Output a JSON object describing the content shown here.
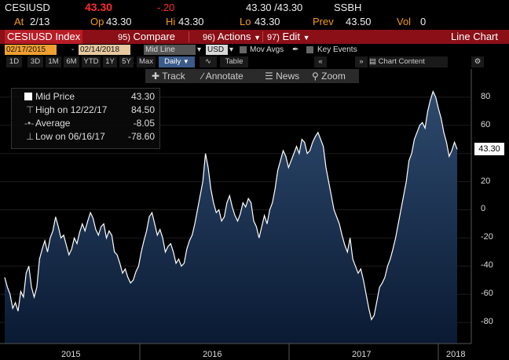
{
  "quote": {
    "ticker": "CESIUSD",
    "price": "43.30",
    "change": "-.20",
    "bid_ask": "43.30 /43.30",
    "source": "SSBH",
    "at_label": "At",
    "at_value": "2/13",
    "op_label": "Op",
    "op_value": "43.30",
    "hi_label": "Hi",
    "hi_value": "43.30",
    "lo_label": "Lo",
    "lo_value": "43.30",
    "prev_label": "Prev",
    "prev_value": "43.50",
    "vol_label": "Vol",
    "vol_value": "0"
  },
  "commandbar": {
    "security": "CESIUSD Index",
    "compare_num": "95)",
    "compare": "Compare",
    "actions_num": "96)",
    "actions": "Actions",
    "edit_num": "97)",
    "edit": "Edit",
    "chart_type": "Line Chart"
  },
  "toolbar": {
    "start_date": "02/17/2015",
    "dash": "-",
    "end_date": "02/14/2018",
    "line_mode": "Mid Line",
    "currency": "USD",
    "mov_avgs": "Mov Avgs",
    "key_events": "Key Events",
    "chart_content": "Chart Content",
    "table": "Table",
    "periods": [
      "1D",
      "3D",
      "1M",
      "6M",
      "YTD",
      "1Y",
      "5Y",
      "Max"
    ],
    "frequency": "Daily"
  },
  "tools": {
    "track": "Track",
    "annotate": "Annotate",
    "news": "News",
    "zoom": "Zoom"
  },
  "legend": {
    "mid_label": "Mid Price",
    "mid_value": "43.30",
    "high_label": "High on 12/22/17",
    "high_value": "84.50",
    "avg_label": "Average",
    "avg_value": "-8.05",
    "low_label": "Low on 06/16/17",
    "low_value": "-78.60"
  },
  "colors": {
    "accent_amber": "#f39c12",
    "negative_red": "#ff2a2a",
    "command_bar": "#8a0f17",
    "line": "#ffffff",
    "area_top": "#2e4a6e",
    "area_bottom": "#0a1a33"
  },
  "chart_data": {
    "type": "area",
    "ylim": [
      -95,
      100
    ],
    "yticks": [
      80,
      60,
      40,
      20,
      0,
      -20,
      -40,
      -60,
      -80
    ],
    "ytick_labels": [
      "80",
      "60",
      "40",
      "20",
      "0",
      "-20",
      "-40",
      "-60",
      "-80"
    ],
    "xticks": [
      "2015",
      "2016",
      "2017",
      "2018"
    ],
    "last_value": "43.30",
    "series": [
      {
        "values": [
          -48,
          -55,
          -60,
          -70,
          -66,
          -72,
          -58,
          -62,
          -45,
          -40,
          -55,
          -62,
          -55,
          -35,
          -28,
          -22,
          -30,
          -20,
          -15,
          -5,
          -12,
          -20,
          -18,
          -25,
          -32,
          -28,
          -20,
          -24,
          -16,
          -10,
          -15,
          -8,
          -2,
          -6,
          -14,
          -18,
          -12,
          -10,
          -20,
          -15,
          -18,
          -30,
          -32,
          -38,
          -45,
          -42,
          -48,
          -52,
          -50,
          -44,
          -40,
          -30,
          -22,
          -15,
          -5,
          -2,
          -10,
          -18,
          -14,
          -20,
          -30,
          -26,
          -24,
          -30,
          -38,
          -35,
          -40,
          -38,
          -28,
          -22,
          -18,
          -10,
          0,
          10,
          20,
          40,
          30,
          15,
          5,
          -2,
          0,
          -8,
          -5,
          5,
          10,
          2,
          -4,
          -8,
          -3,
          5,
          2,
          8,
          5,
          -8,
          -12,
          -20,
          -12,
          -4,
          -10,
          0,
          5,
          15,
          28,
          35,
          42,
          38,
          30,
          35,
          40,
          45,
          40,
          50,
          48,
          40,
          42,
          48,
          52,
          55,
          50,
          45,
          30,
          20,
          10,
          0,
          -5,
          -10,
          -18,
          -25,
          -30,
          -20,
          -35,
          -40,
          -45,
          -42,
          -50,
          -60,
          -70,
          -78,
          -75,
          -65,
          -55,
          -52,
          -48,
          -40,
          -35,
          -28,
          -20,
          -10,
          0,
          10,
          20,
          35,
          40,
          50,
          55,
          60,
          62,
          58,
          70,
          78,
          84,
          80,
          72,
          65,
          55,
          48,
          38,
          42,
          48,
          43
        ]
      }
    ]
  }
}
